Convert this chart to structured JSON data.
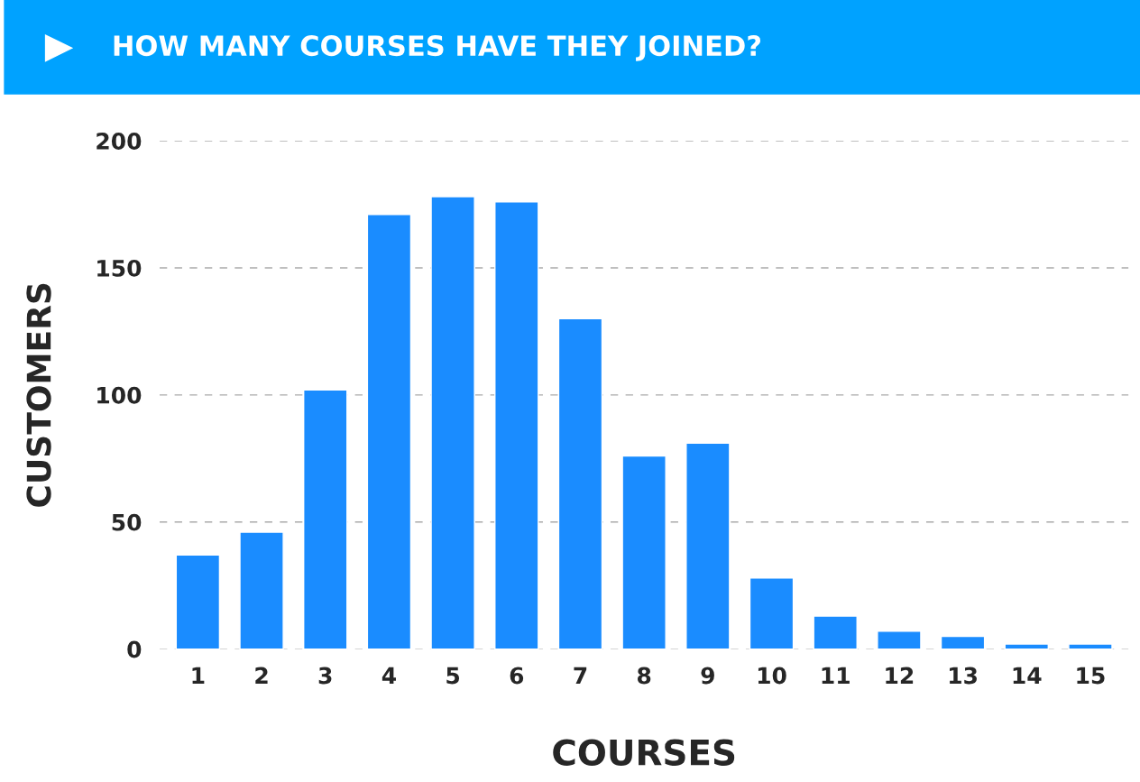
{
  "chart_data": {
    "type": "bar",
    "title": "HOW MANY COURSES HAVE THEY JOINED?",
    "xlabel": "COURSES",
    "ylabel": "CUSTOMERS",
    "categories": [
      "1",
      "2",
      "3",
      "4",
      "5",
      "6",
      "7",
      "8",
      "9",
      "10",
      "11",
      "12",
      "13",
      "14",
      "15"
    ],
    "values": [
      37,
      46,
      102,
      171,
      178,
      176,
      130,
      76,
      81,
      28,
      13,
      7,
      5,
      2,
      2
    ],
    "color": "#1a8cff",
    "ylim": [
      0,
      200
    ],
    "yticks": [
      0,
      50,
      100,
      150,
      200
    ],
    "grid": "y"
  }
}
